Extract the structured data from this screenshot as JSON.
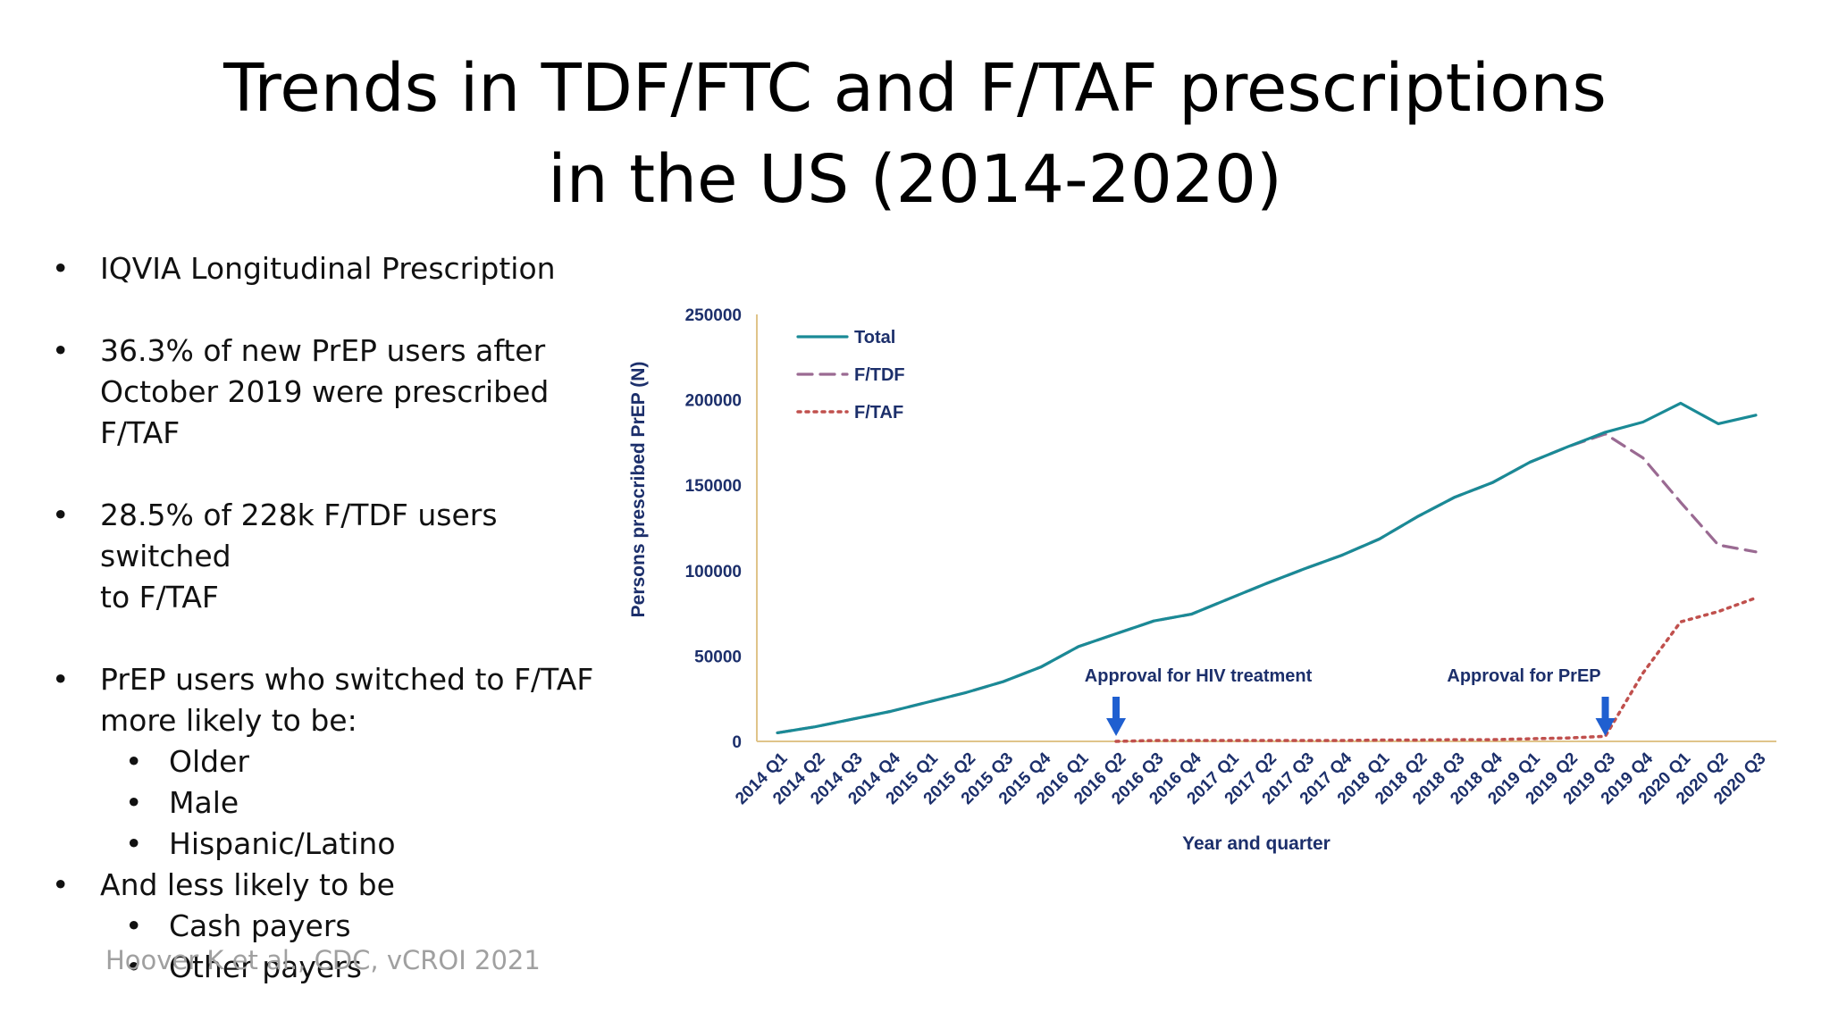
{
  "slide": {
    "title_lines": [
      "Trends in TDF/FTC and F/TAF prescriptions",
      "in the US (2014-2020)"
    ],
    "bullets": [
      {
        "level": 1,
        "lines": [
          "IQVIA Longitudinal Prescription"
        ]
      },
      {
        "level": 1,
        "lines": [
          "36.3% of new PrEP users after",
          "October 2019 were prescribed F/TAF"
        ]
      },
      {
        "level": 1,
        "lines": [
          "28.5% of 228k F/TDF users switched",
          "to F/TAF"
        ]
      },
      {
        "level": 1,
        "lines": [
          "PrEP users who switched to F/TAF",
          "more likely to be:"
        ]
      },
      {
        "level": 2,
        "lines": [
          "Older"
        ]
      },
      {
        "level": 2,
        "lines": [
          "Male"
        ]
      },
      {
        "level": 2,
        "lines": [
          "Hispanic/Latino"
        ]
      },
      {
        "level": 1,
        "lines": [
          "And less likely to be"
        ]
      },
      {
        "level": 2,
        "lines": [
          "Cash payers"
        ]
      },
      {
        "level": 2,
        "lines": [
          "Other payers"
        ]
      }
    ],
    "citation": "Hoover K et al., CDC, vCROI 2021"
  },
  "chart_data": {
    "type": "line",
    "title": "",
    "xlabel": "Year and quarter",
    "ylabel": "Persons prescribed PrEP (N)",
    "ylim": [
      0,
      250000
    ],
    "yticks": [
      "250000",
      "200000",
      "150000",
      "100000",
      "50000",
      "0"
    ],
    "grid": false,
    "legend_position": "top-left",
    "categories": [
      "2014 Q1",
      "2014 Q2",
      "2014 Q3",
      "2014 Q4",
      "2015 Q1",
      "2015 Q2",
      "2015 Q3",
      "2015 Q4",
      "2016 Q1",
      "2016 Q2",
      "2016 Q3",
      "2016 Q4",
      "2017 Q1",
      "2017 Q2",
      "2017 Q3",
      "2017 Q4",
      "2018 Q1",
      "2018 Q2",
      "2018 Q3",
      "2018 Q4",
      "2019 Q1",
      "2019 Q2",
      "2019 Q3",
      "2019 Q4",
      "2020 Q1",
      "2020 Q2",
      "2020 Q3"
    ],
    "series": [
      {
        "name": "Total",
        "style": "solid",
        "color": "#1a8a96",
        "values": [
          5000,
          8500,
          13000,
          17500,
          23000,
          28500,
          35000,
          43500,
          55500,
          63000,
          70500,
          74500,
          83500,
          92500,
          101000,
          109000,
          118500,
          131500,
          143000,
          151500,
          163500,
          172500,
          181000,
          187000,
          198000,
          186000,
          191000
        ]
      },
      {
        "name": "F/TDF",
        "style": "dashed",
        "color": "#9a6a92",
        "values": [
          5000,
          8500,
          13000,
          17500,
          23000,
          28500,
          35000,
          43500,
          55500,
          63000,
          70500,
          74500,
          83500,
          92500,
          101000,
          109000,
          118500,
          131500,
          143000,
          151500,
          163500,
          172500,
          180000,
          166000,
          140000,
          115000,
          111000
        ]
      },
      {
        "name": "F/TAF",
        "style": "dotted",
        "color": "#c0504d",
        "values": [
          null,
          null,
          null,
          null,
          null,
          null,
          null,
          null,
          null,
          0,
          500,
          500,
          500,
          500,
          500,
          500,
          800,
          800,
          1000,
          1000,
          1500,
          2000,
          3000,
          40000,
          70000,
          76000,
          84000
        ]
      }
    ],
    "annotations": [
      {
        "text": "Approval for HIV treatment",
        "category": "2016 Q2"
      },
      {
        "text": "Approval for PrEP",
        "category": "2019 Q3"
      }
    ]
  }
}
